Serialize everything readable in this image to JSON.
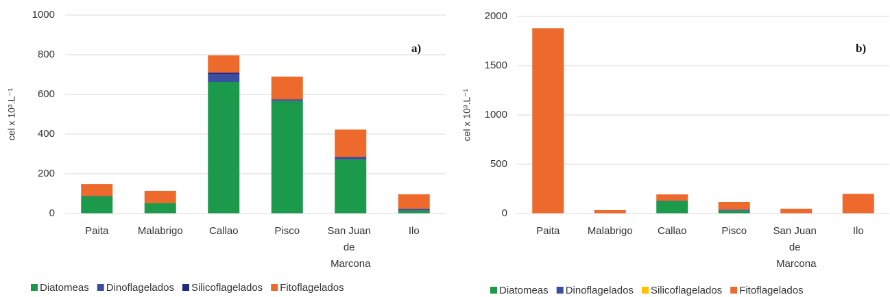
{
  "chart_data": [
    {
      "type": "stacked_bar",
      "annotation": "a)",
      "y_label": "cel x 10³.L⁻¹",
      "categories": [
        "Paita",
        "Malabrigo",
        "Callao",
        "Pisco",
        "San Juan de Marcona",
        "Ilo"
      ],
      "series": [
        {
          "name": "Diatomeas",
          "color": "#1a9a4a",
          "values": [
            86,
            52,
            662,
            566,
            272,
            15
          ]
        },
        {
          "name": "Dinoflagelados",
          "color": "#3a4fa0",
          "values": [
            2,
            0,
            40,
            6,
            8,
            7
          ]
        },
        {
          "name": "Silicoflagelados",
          "color": "#1f2a80",
          "values": [
            0,
            0,
            8,
            3,
            5,
            2
          ]
        },
        {
          "name": "Fitoflagelados",
          "color": "#ee6a2c",
          "values": [
            60,
            62,
            87,
            115,
            138,
            73
          ]
        }
      ],
      "ylim": [
        0,
        1000
      ],
      "yticks": [
        0,
        200,
        400,
        600,
        800,
        1000
      ],
      "grid": true
    },
    {
      "type": "stacked_bar",
      "annotation": "b)",
      "y_label": "cel x 10³.L⁻¹",
      "categories": [
        "Paita",
        "Malabrigo",
        "Callao",
        "Pisco",
        "San Juan de Marcona",
        "Ilo"
      ],
      "series": [
        {
          "name": "Diatomeas",
          "color": "#1a9a4a",
          "values": [
            0,
            0,
            125,
            30,
            0,
            0
          ]
        },
        {
          "name": "Dinoflagelados",
          "color": "#3a4fa0",
          "values": [
            0,
            0,
            5,
            10,
            0,
            0
          ]
        },
        {
          "name": "Silicoflagelados",
          "color": "#ffc000",
          "values": [
            0,
            0,
            0,
            0,
            0,
            0
          ]
        },
        {
          "name": "Fitoflagelados",
          "color": "#ee6a2c",
          "values": [
            1880,
            35,
            64,
            78,
            49,
            200
          ]
        }
      ],
      "ylim": [
        0,
        2000
      ],
      "yticks": [
        0,
        500,
        1000,
        1500,
        2000
      ],
      "grid": true
    }
  ]
}
